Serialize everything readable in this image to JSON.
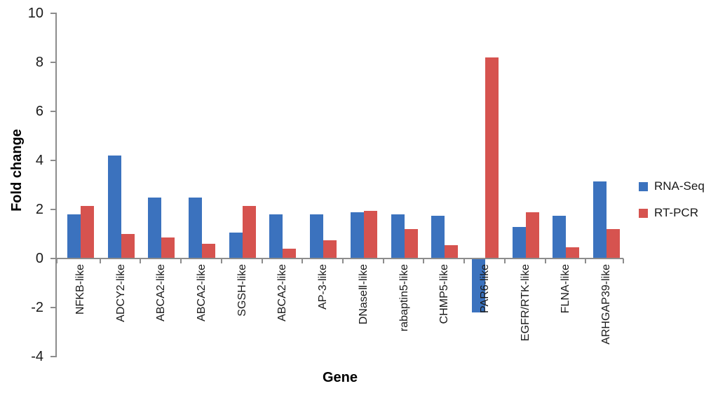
{
  "chart_data": {
    "type": "bar",
    "title": "",
    "xlabel": "Gene",
    "ylabel": "Fold change",
    "categories": [
      "NFKB-like",
      "ADCY2-like",
      "ABCA2-like",
      "ABCA2-like",
      "SGSH-like",
      "ABCA2-like",
      "AP-3-like",
      "DNaseⅡ-like",
      "rabaptin5-like",
      "CHMP5-like",
      "PAR6-like",
      "EGFR/RTK-like",
      "FLNA-like",
      "ARHGAP39-like"
    ],
    "series": [
      {
        "name": "RNA-Seq",
        "color": "#3B72BE",
        "values": [
          1.8,
          4.2,
          2.5,
          2.5,
          1.05,
          1.8,
          1.8,
          1.9,
          1.8,
          1.75,
          -2.2,
          1.3,
          1.75,
          3.15
        ]
      },
      {
        "name": "RT-PCR",
        "color": "#D6534F",
        "values": [
          2.15,
          1.0,
          0.85,
          0.6,
          2.15,
          0.4,
          0.75,
          1.95,
          1.2,
          0.55,
          8.2,
          1.9,
          0.45,
          1.2
        ]
      }
    ],
    "ylim": [
      -4,
      10
    ],
    "yticks": [
      10,
      8,
      6,
      4,
      2,
      0,
      -2,
      -4
    ],
    "grid": false,
    "legend_position": "right",
    "axis_color": "#8C8C8C",
    "text_color": "#1A1A1A"
  }
}
